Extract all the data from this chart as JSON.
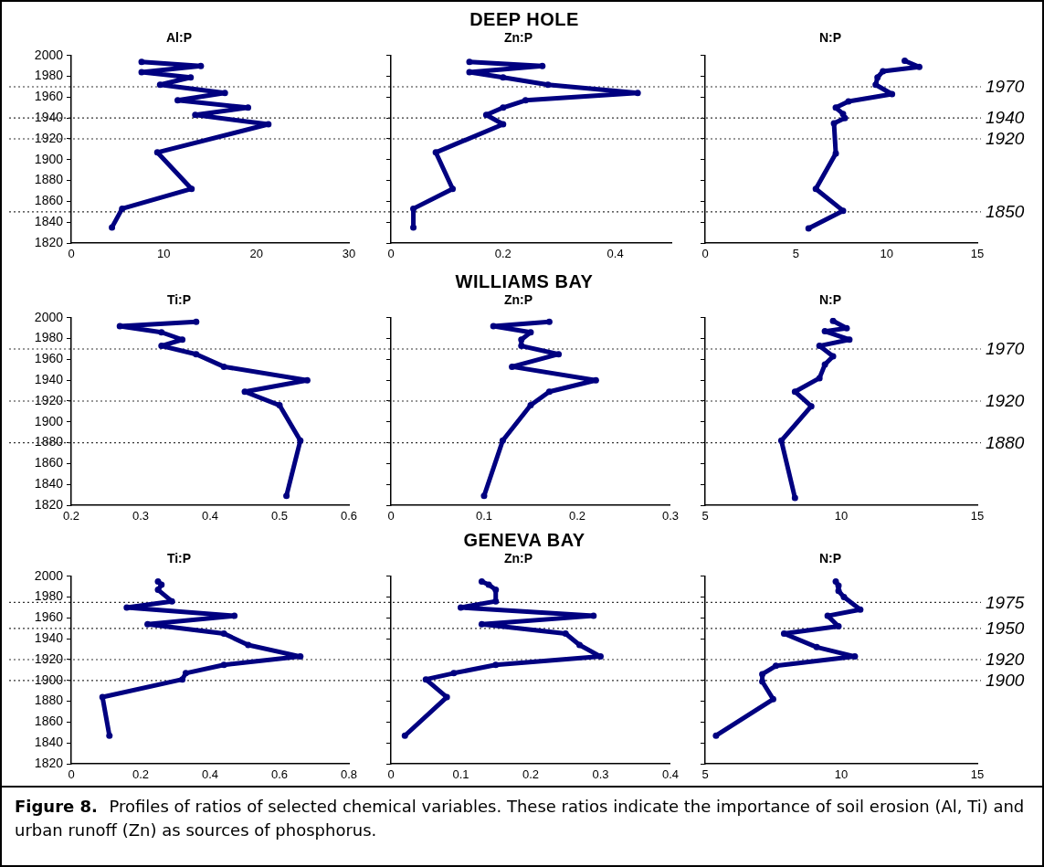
{
  "chart_data": [
    {
      "type": "other",
      "title": "DEEP HOLE"
    },
    {
      "type": "line",
      "title": "Al:P",
      "x": [
        7.6,
        14.0,
        7.6,
        12.9,
        9.6,
        16.6,
        11.5,
        19.1,
        13.4,
        21.3,
        9.3,
        13.0,
        5.5,
        4.4
      ],
      "values": [
        1994,
        1990,
        1984,
        1979,
        1972,
        1964,
        1957,
        1950,
        1943,
        1934,
        1907,
        1872,
        1853,
        1835
      ],
      "color": "#000080",
      "marker": "circle",
      "line_style": "solid",
      "xlim": [
        0,
        30
      ],
      "xticks": [
        0,
        10,
        20,
        30
      ],
      "ylim": [
        1820,
        2000
      ],
      "yticks": [
        1820,
        1840,
        1860,
        1880,
        1900,
        1920,
        1940,
        1960,
        1980,
        2000
      ],
      "ref_lines": [
        {
          "axis": "y",
          "value": 1970,
          "line_style": "dotted"
        },
        {
          "axis": "y",
          "value": 1940,
          "line_style": "dotted"
        },
        {
          "axis": "y",
          "value": 1920,
          "line_style": "dotted"
        },
        {
          "axis": "y",
          "value": 1850,
          "line_style": "dotted"
        }
      ]
    },
    {
      "type": "line",
      "title": "Zn:P",
      "x": [
        0.14,
        0.27,
        0.14,
        0.2,
        0.28,
        0.44,
        0.24,
        0.2,
        0.17,
        0.2,
        0.08,
        0.11,
        0.04,
        0.04
      ],
      "values": [
        1994,
        1990,
        1984,
        1979,
        1972,
        1964,
        1957,
        1950,
        1943,
        1934,
        1907,
        1872,
        1853,
        1835
      ],
      "color": "#000080",
      "marker": "circle",
      "line_style": "solid",
      "xlim": [
        0,
        0.5
      ],
      "xticks": [
        0,
        0.2,
        0.4
      ],
      "ylim": [
        1820,
        2000
      ],
      "yticks": [
        1820,
        1840,
        1860,
        1880,
        1900,
        1920,
        1940,
        1960,
        1980,
        2000
      ],
      "tick_labels": "x",
      "ref_lines": [
        {
          "axis": "y",
          "value": 1970,
          "line_style": "dotted"
        },
        {
          "axis": "y",
          "value": 1940,
          "line_style": "dotted"
        },
        {
          "axis": "y",
          "value": 1920,
          "line_style": "dotted"
        },
        {
          "axis": "y",
          "value": 1850,
          "line_style": "dotted"
        }
      ]
    },
    {
      "type": "line",
      "title": "N:P",
      "x": [
        11.0,
        11.8,
        9.8,
        9.5,
        9.4,
        10.3,
        7.9,
        7.2,
        7.6,
        7.7,
        7.1,
        7.2,
        6.1,
        7.6,
        5.7
      ],
      "values": [
        1995,
        1989,
        1985,
        1979,
        1972,
        1963,
        1956,
        1950,
        1944,
        1940,
        1935,
        1906,
        1872,
        1851,
        1834
      ],
      "color": "#000080",
      "marker": "circle",
      "line_style": "solid",
      "xlim": [
        0,
        15
      ],
      "xticks": [
        0,
        5,
        10,
        15
      ],
      "ylim": [
        1820,
        2000
      ],
      "yticks": [
        1820,
        1840,
        1860,
        1880,
        1900,
        1920,
        1940,
        1960,
        1980,
        2000
      ],
      "tick_labels": "x",
      "ref_lines": [
        {
          "axis": "y",
          "value": 1970,
          "label": "1970",
          "line_style": "dotted"
        },
        {
          "axis": "y",
          "value": 1940,
          "label": "1940",
          "line_style": "dotted"
        },
        {
          "axis": "y",
          "value": 1920,
          "label": "1920",
          "line_style": "dotted"
        },
        {
          "axis": "y",
          "value": 1850,
          "label": "1850",
          "line_style": "dotted"
        }
      ]
    },
    {
      "type": "other",
      "title": "WILLIAMS BAY"
    },
    {
      "type": "line",
      "title": "Ti:P",
      "x": [
        0.38,
        0.27,
        0.33,
        0.36,
        0.33,
        0.38,
        0.42,
        0.54,
        0.45,
        0.5,
        0.53,
        0.51
      ],
      "values": [
        1996,
        1992,
        1986,
        1979,
        1973,
        1965,
        1953,
        1940,
        1929,
        1916,
        1882,
        1829
      ],
      "color": "#000080",
      "marker": "circle",
      "line_style": "solid",
      "xlim": [
        0.2,
        0.6
      ],
      "xticks": [
        0.2,
        0.3,
        0.4,
        0.5,
        0.6
      ],
      "ylim": [
        1820,
        2000
      ],
      "yticks": [
        1820,
        1840,
        1860,
        1880,
        1900,
        1920,
        1940,
        1960,
        1980,
        2000
      ],
      "ref_lines": [
        {
          "axis": "y",
          "value": 1970,
          "line_style": "dotted"
        },
        {
          "axis": "y",
          "value": 1920,
          "line_style": "dotted"
        },
        {
          "axis": "y",
          "value": 1880,
          "line_style": "dotted"
        }
      ]
    },
    {
      "type": "line",
      "title": "Zn:P",
      "x": [
        0.17,
        0.11,
        0.15,
        0.14,
        0.14,
        0.18,
        0.13,
        0.22,
        0.17,
        0.15,
        0.12,
        0.1
      ],
      "values": [
        1996,
        1992,
        1986,
        1979,
        1973,
        1965,
        1953,
        1940,
        1929,
        1916,
        1882,
        1829
      ],
      "color": "#000080",
      "marker": "circle",
      "line_style": "solid",
      "xlim": [
        0,
        0.3
      ],
      "xticks": [
        0,
        0.1,
        0.2,
        0.3
      ],
      "ylim": [
        1820,
        2000
      ],
      "yticks": [
        1820,
        1840,
        1860,
        1880,
        1900,
        1920,
        1940,
        1960,
        1980,
        2000
      ],
      "tick_labels": "x",
      "ref_lines": [
        {
          "axis": "y",
          "value": 1970,
          "line_style": "dotted"
        },
        {
          "axis": "y",
          "value": 1920,
          "line_style": "dotted"
        },
        {
          "axis": "y",
          "value": 1880,
          "line_style": "dotted"
        }
      ]
    },
    {
      "type": "line",
      "title": "N:P",
      "x": [
        9.7,
        10.2,
        9.4,
        10.3,
        9.2,
        9.7,
        9.4,
        9.2,
        8.3,
        8.9,
        7.8,
        8.3
      ],
      "values": [
        1997,
        1990,
        1987,
        1979,
        1973,
        1963,
        1955,
        1942,
        1929,
        1915,
        1882,
        1827
      ],
      "color": "#000080",
      "marker": "circle",
      "line_style": "solid",
      "xlim": [
        5,
        15
      ],
      "xticks": [
        5,
        10,
        15
      ],
      "ylim": [
        1820,
        2000
      ],
      "yticks": [
        1820,
        1840,
        1860,
        1880,
        1900,
        1920,
        1940,
        1960,
        1980,
        2000
      ],
      "tick_labels": "x",
      "ref_lines": [
        {
          "axis": "y",
          "value": 1970,
          "label": "1970",
          "line_style": "dotted"
        },
        {
          "axis": "y",
          "value": 1920,
          "label": "1920",
          "line_style": "dotted"
        },
        {
          "axis": "y",
          "value": 1880,
          "label": "1880",
          "line_style": "dotted"
        }
      ]
    },
    {
      "type": "other",
      "title": "GENEVA BAY"
    },
    {
      "type": "line",
      "title": "Ti:P",
      "x": [
        0.25,
        0.26,
        0.25,
        0.29,
        0.16,
        0.47,
        0.22,
        0.44,
        0.51,
        0.66,
        0.44,
        0.33,
        0.32,
        0.09,
        0.11
      ],
      "values": [
        1995,
        1992,
        1987,
        1976,
        1970,
        1962,
        1954,
        1945,
        1934,
        1923,
        1915,
        1907,
        1901,
        1884,
        1847
      ],
      "color": "#000080",
      "marker": "circle",
      "line_style": "solid",
      "xlim": [
        0,
        0.8
      ],
      "xticks": [
        0,
        0.2,
        0.4,
        0.6,
        0.8
      ],
      "ylim": [
        1820,
        2000
      ],
      "yticks": [
        1820,
        1840,
        1860,
        1880,
        1900,
        1920,
        1940,
        1960,
        1980,
        2000
      ],
      "ref_lines": [
        {
          "axis": "y",
          "value": 1975,
          "line_style": "dotted"
        },
        {
          "axis": "y",
          "value": 1950,
          "line_style": "dotted"
        },
        {
          "axis": "y",
          "value": 1920,
          "line_style": "dotted"
        },
        {
          "axis": "y",
          "value": 1900,
          "line_style": "dotted"
        }
      ]
    },
    {
      "type": "line",
      "title": "Zn:P",
      "x": [
        0.13,
        0.14,
        0.15,
        0.15,
        0.1,
        0.29,
        0.13,
        0.25,
        0.27,
        0.3,
        0.15,
        0.09,
        0.05,
        0.08,
        0.02
      ],
      "values": [
        1995,
        1992,
        1987,
        1976,
        1970,
        1962,
        1954,
        1945,
        1934,
        1923,
        1915,
        1907,
        1901,
        1884,
        1847
      ],
      "color": "#000080",
      "marker": "circle",
      "line_style": "solid",
      "xlim": [
        0,
        0.4
      ],
      "xticks": [
        0,
        0.1,
        0.2,
        0.3,
        0.4
      ],
      "ylim": [
        1820,
        2000
      ],
      "yticks": [
        1820,
        1840,
        1860,
        1880,
        1900,
        1920,
        1940,
        1960,
        1980,
        2000
      ],
      "tick_labels": "x",
      "ref_lines": [
        {
          "axis": "y",
          "value": 1975,
          "line_style": "dotted"
        },
        {
          "axis": "y",
          "value": 1950,
          "line_style": "dotted"
        },
        {
          "axis": "y",
          "value": 1920,
          "line_style": "dotted"
        },
        {
          "axis": "y",
          "value": 1900,
          "line_style": "dotted"
        }
      ]
    },
    {
      "type": "line",
      "title": "N:P",
      "x": [
        9.8,
        9.9,
        9.9,
        10.1,
        10.7,
        9.5,
        9.9,
        7.9,
        9.1,
        10.5,
        7.6,
        7.1,
        7.1,
        7.5,
        5.4
      ],
      "values": [
        1995,
        1991,
        1986,
        1980,
        1968,
        1962,
        1952,
        1945,
        1932,
        1923,
        1914,
        1906,
        1899,
        1882,
        1847
      ],
      "color": "#000080",
      "marker": "circle",
      "line_style": "solid",
      "xlim": [
        5,
        15
      ],
      "xticks": [
        5,
        10,
        15
      ],
      "ylim": [
        1820,
        2000
      ],
      "yticks": [
        1820,
        1840,
        1860,
        1880,
        1900,
        1920,
        1940,
        1960,
        1980,
        2000
      ],
      "tick_labels": "x",
      "ref_lines": [
        {
          "axis": "y",
          "value": 1975,
          "label": "1975",
          "line_style": "dotted"
        },
        {
          "axis": "y",
          "value": 1950,
          "label": "1950",
          "line_style": "dotted"
        },
        {
          "axis": "y",
          "value": 1920,
          "label": "1920",
          "line_style": "dotted"
        },
        {
          "axis": "y",
          "value": 1900,
          "label": "1900",
          "line_style": "dotted"
        }
      ]
    },
    {
      "type": "other",
      "annotations": [
        "Figure 8.",
        "Profiles of ratios of selected chemical variables.  These ratios indicate the importance of soil erosion (Al, Ti) and urban runoff (Zn) as sources of phosphorus."
      ]
    }
  ]
}
